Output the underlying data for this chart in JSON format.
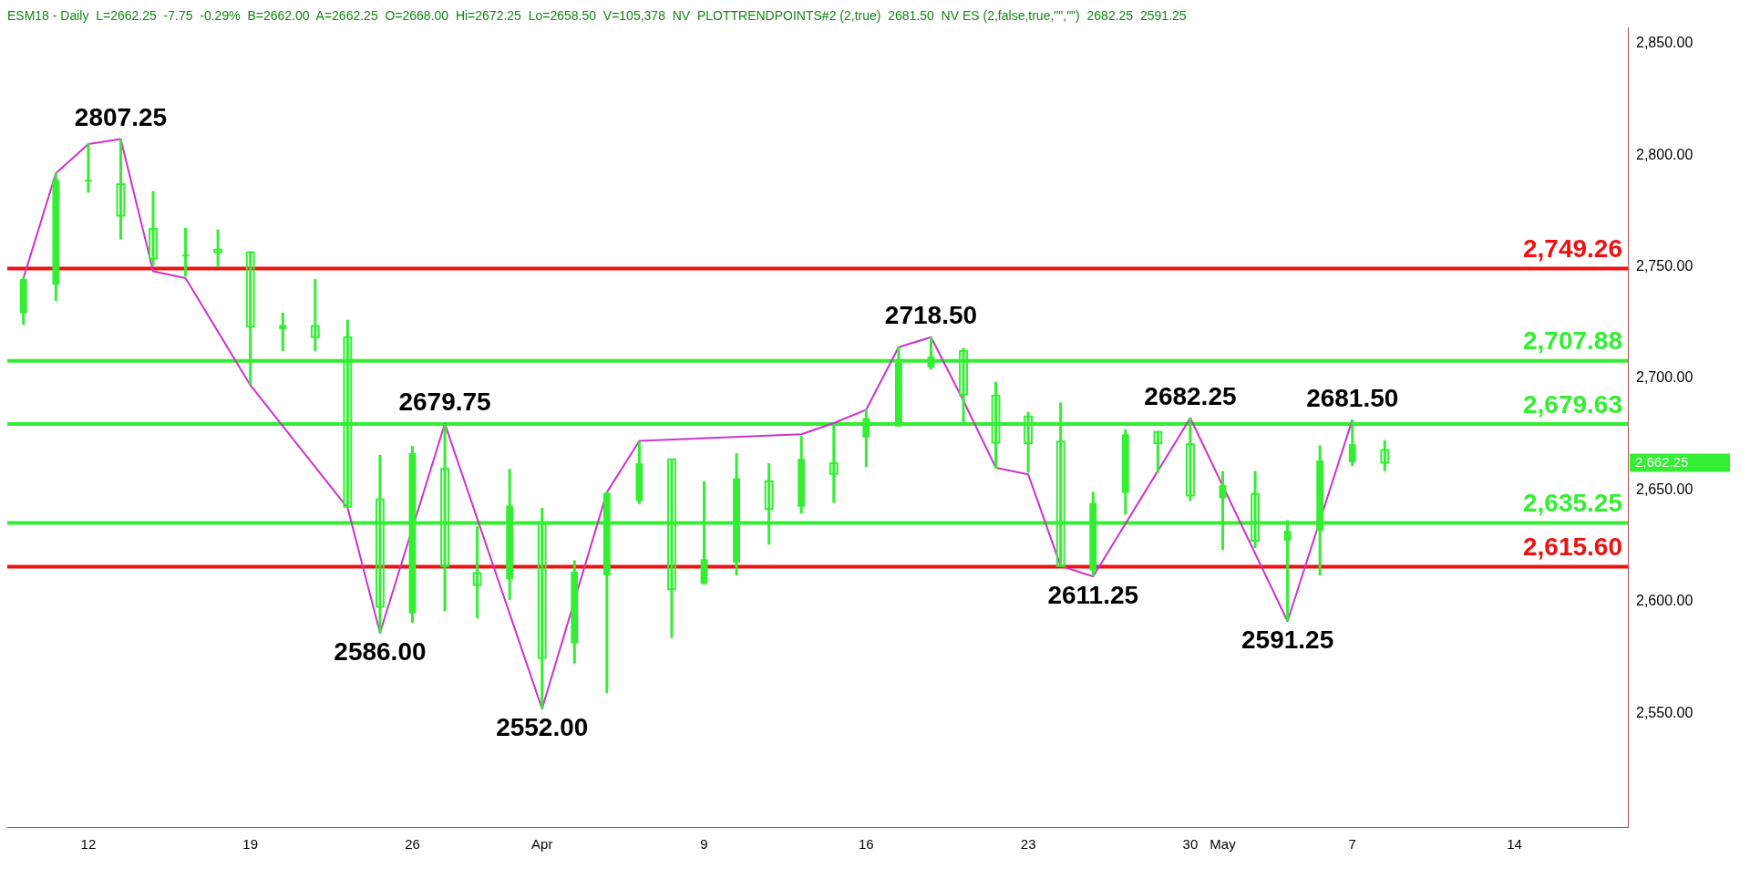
{
  "chart_data": {
    "type": "candlestick",
    "subtitle": "ESM18 - Daily  L=2662.25  -7.75  -0.29%  B=2662.00  A=2662.25  O=2668.00  Hi=2672.25  Lo=2658.50  V=105,378  NV  PLOTTRENDPOINTS#2 (2,true)  2681.50  NV ES (2,false,true,\"\",\"\")  2682.25  2591.25",
    "categories": [
      null,
      null,
      "12",
      null,
      null,
      null,
      null,
      "19",
      null,
      null,
      null,
      null,
      "26",
      null,
      null,
      null,
      "Apr",
      null,
      null,
      null,
      null,
      "9",
      null,
      null,
      null,
      null,
      "16",
      null,
      null,
      null,
      null,
      "23",
      null,
      null,
      null,
      null,
      "30",
      "May",
      null,
      null,
      null,
      "7",
      null,
      null,
      null,
      null,
      "14",
      null,
      null,
      null
    ],
    "color": "#33ee33",
    "ohlc": [
      [
        2729.25,
        2745.75,
        2724,
        2744.5
      ],
      [
        2742,
        2792.25,
        2734.75,
        2789
      ],
      [
        2789,
        2805.5,
        2783.25,
        2789
      ],
      [
        2787,
        2807.25,
        2762.25,
        2773
      ],
      [
        2767,
        2784,
        2750.5,
        2753.75
      ],
      [
        2755.5,
        2767.5,
        2745.75,
        2755.5
      ],
      [
        2757.75,
        2766.75,
        2750,
        2756.5
      ],
      [
        2756.5,
        2757,
        2697.25,
        2723.25
      ],
      [
        2722,
        2729.5,
        2712.25,
        2724
      ],
      [
        2723.5,
        2744.5,
        2712.25,
        2718.5
      ],
      [
        2718.5,
        2726.25,
        2642.5,
        2642.5
      ],
      [
        2645.75,
        2665.75,
        2586,
        2597.75
      ],
      [
        2594.75,
        2669.75,
        2590.5,
        2666.5
      ],
      [
        2659.5,
        2679.75,
        2595.75,
        2616
      ],
      [
        2612.75,
        2633.75,
        2592.5,
        2607.5
      ],
      [
        2610,
        2659.5,
        2600.75,
        2643
      ],
      [
        2635.25,
        2642,
        2552,
        2574.75
      ],
      [
        2581.25,
        2618.5,
        2572.25,
        2613.5
      ],
      [
        2611.75,
        2649.25,
        2559,
        2648.75
      ],
      [
        2645,
        2671.75,
        2643.75,
        2662
      ],
      [
        2663.75,
        2663.75,
        2583.75,
        2605.5
      ],
      [
        2608,
        2654,
        2607.5,
        2619
      ],
      [
        2617.5,
        2666.5,
        2611.75,
        2655.25
      ],
      [
        2654,
        2662,
        2625.5,
        2641.5
      ],
      [
        2642.5,
        2674.25,
        2639.5,
        2664
      ],
      [
        2662,
        2679,
        2644.25,
        2657.25
      ],
      [
        2673.5,
        2686.25,
        2660.25,
        2682.25
      ],
      [
        2678.5,
        2714.25,
        2678.5,
        2707
      ],
      [
        2705,
        2718.5,
        2704,
        2709.75
      ],
      [
        2712.25,
        2713.75,
        2680.25,
        2692.75
      ],
      [
        2692.25,
        2698.5,
        2659.5,
        2671.25
      ],
      [
        2683,
        2685,
        2657.75,
        2671
      ],
      [
        2671.75,
        2689.25,
        2616,
        2616
      ],
      [
        2614,
        2649.25,
        2611.25,
        2644.25
      ],
      [
        2648.75,
        2677.25,
        2639,
        2675
      ],
      [
        2676,
        2676.5,
        2657.75,
        2671
      ],
      [
        2670.5,
        2682.25,
        2645,
        2647.5
      ],
      [
        2646.25,
        2658.5,
        2623.25,
        2652.25
      ],
      [
        2648.25,
        2658.5,
        2624,
        2627.25
      ],
      [
        2627.25,
        2636.5,
        2591.25,
        2631.75
      ],
      [
        2631.75,
        2670,
        2611.75,
        2663.25
      ],
      [
        2662.5,
        2681.5,
        2660.75,
        2670.5
      ],
      [
        2668,
        2672.25,
        2658.5,
        2662.25
      ],
      null,
      null,
      null,
      null,
      null,
      null,
      null
    ],
    "series": [
      {
        "type": "line",
        "color": "#cc33cc",
        "values": [
          2745,
          2792,
          2805,
          2807.25,
          2748,
          2745,
          null,
          2697,
          null,
          null,
          2642,
          2586,
          null,
          2679.75,
          null,
          null,
          2552,
          null,
          2649,
          2672,
          null,
          null,
          null,
          null,
          2675,
          2680,
          2686,
          2714,
          2718.5,
          2690,
          2660,
          2657,
          2616,
          2611.25,
          null,
          null,
          2682.25,
          null,
          null,
          2591.25,
          null,
          2681.5,
          null,
          null,
          null,
          null,
          null,
          null,
          null,
          null
        ]
      }
    ],
    "ylim": [
      2499,
      2857
    ],
    "yticks": [
      {
        "value": 2550,
        "label": "2,550.00"
      },
      {
        "value": 2600,
        "label": "2,600.00"
      },
      {
        "value": 2650,
        "label": "2,650.00"
      },
      {
        "value": 2700,
        "label": "2,700.00"
      },
      {
        "value": 2750,
        "label": "2,750.00"
      },
      {
        "value": 2800,
        "label": "2,800.00"
      },
      {
        "value": 2850,
        "label": "2,850.00"
      }
    ],
    "ref_lines": [
      {
        "axis": "y",
        "value": 2749.26,
        "label": "2,749.26",
        "color": "#ee1111"
      },
      {
        "axis": "y",
        "value": 2707.88,
        "label": "2,707.88",
        "color": "#33ee33"
      },
      {
        "axis": "y",
        "value": 2679.63,
        "label": "2,679.63",
        "color": "#33ee33"
      },
      {
        "axis": "y",
        "value": 2635.25,
        "label": "2,635.25",
        "color": "#33ee33"
      },
      {
        "axis": "y",
        "value": 2615.6,
        "label": "2,615.60",
        "color": "#ee1111"
      }
    ],
    "annotations": [
      {
        "text": "2807.25",
        "y": 2807.25
      },
      {
        "text": "2586.00",
        "y": 2586
      },
      {
        "text": "2679.75",
        "y": 2679.75
      },
      {
        "text": "2552.00",
        "y": 2552
      },
      {
        "text": "2718.50",
        "y": 2718.5
      },
      {
        "text": "2611.25",
        "y": 2611.25
      },
      {
        "text": "2682.25",
        "y": 2682.25
      },
      {
        "text": "2591.25",
        "y": 2591.25
      },
      {
        "text": "2681.50",
        "y": 2681.5
      },
      "2,662.25"
    ],
    "grid": false,
    "legend": false
  }
}
